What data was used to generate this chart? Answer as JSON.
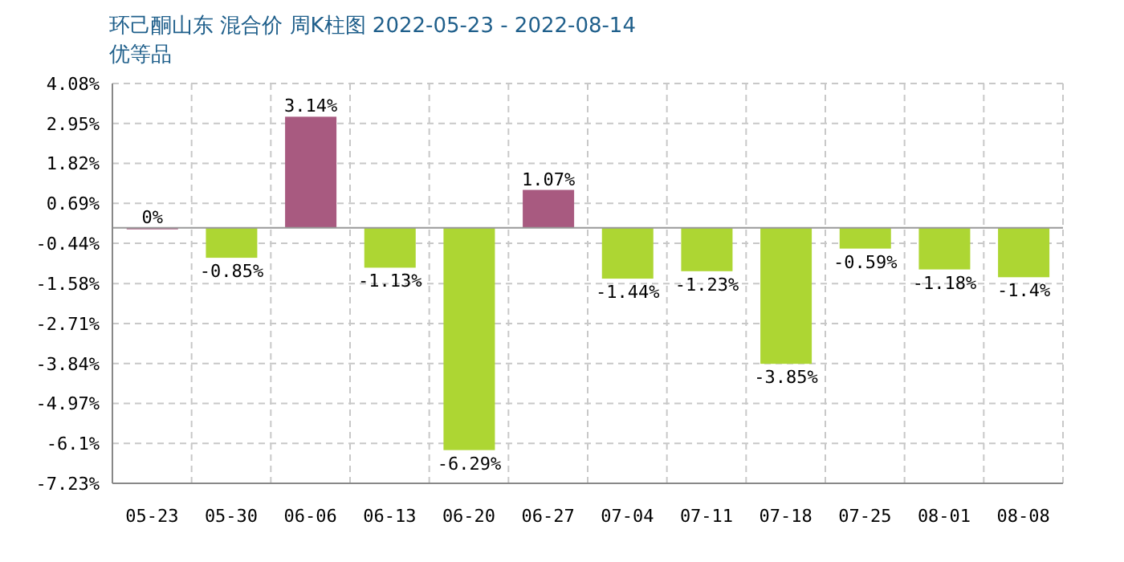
{
  "chart_data": {
    "type": "bar",
    "title": "环己酮山东 混合价 周K柱图 2022-05-23 - 2022-08-14",
    "subtitle": "优等品",
    "categories": [
      "05-23",
      "05-30",
      "06-06",
      "06-13",
      "06-20",
      "06-27",
      "07-04",
      "07-11",
      "07-18",
      "07-25",
      "08-01",
      "08-08"
    ],
    "values": [
      0,
      -0.85,
      3.14,
      -1.13,
      -6.29,
      1.07,
      -1.44,
      -1.23,
      -3.85,
      -0.59,
      -1.18,
      -1.4
    ],
    "colors": [
      "#a85a80",
      "#add633",
      "#a85a80",
      "#add633",
      "#add633",
      "#a85a80",
      "#add633",
      "#add633",
      "#add633",
      "#add633",
      "#add633",
      "#add633"
    ],
    "value_labels": [
      "0%",
      "-0.85%",
      "3.14%",
      "-1.13%",
      "-6.29%",
      "1.07%",
      "-1.44%",
      "-1.23%",
      "-3.85%",
      "-0.59%",
      "-1.18%",
      "-1.4%"
    ],
    "ylim": [
      -7.23,
      4.08
    ],
    "yticks": [
      {
        "value": 4.08,
        "label": "4.08%"
      },
      {
        "value": 2.95,
        "label": "2.95%"
      },
      {
        "value": 1.82,
        "label": "1.82%"
      },
      {
        "value": 0.69,
        "label": "0.69%"
      },
      {
        "value": -0.44,
        "label": "-0.44%"
      },
      {
        "value": -1.58,
        "label": "-1.58%"
      },
      {
        "value": -2.71,
        "label": "-2.71%"
      },
      {
        "value": -3.84,
        "label": "-3.84%"
      },
      {
        "value": -4.97,
        "label": "-4.97%"
      },
      {
        "value": -6.1,
        "label": "-6.1%"
      },
      {
        "value": -7.23,
        "label": "-7.23%"
      }
    ],
    "ref_lines": [
      {
        "axis": "y",
        "value": 0,
        "color": "#999999"
      }
    ],
    "grid": true,
    "legend": false
  }
}
